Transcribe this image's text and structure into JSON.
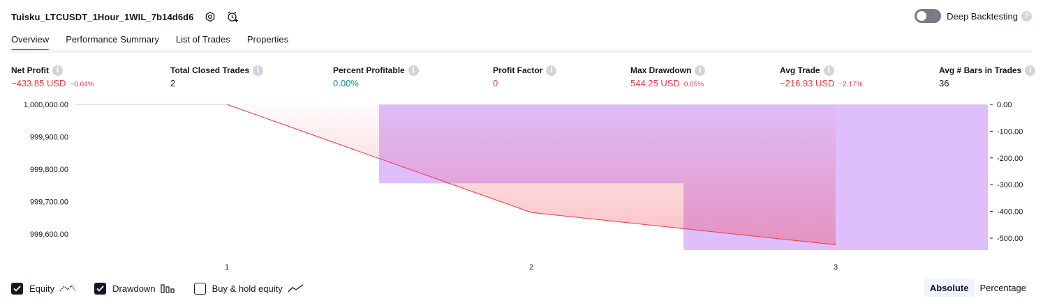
{
  "header": {
    "strategy_name": "Tuisku_LTCUSDT_1Hour_1WIL_7b14d6d6",
    "icons": [
      "settings-icon",
      "add-alert-icon"
    ]
  },
  "deep_backtesting": {
    "label": "Deep Backtesting",
    "enabled": false,
    "help": "?"
  },
  "tabs": [
    {
      "label": "Overview",
      "active": true
    },
    {
      "label": "Performance Summary",
      "active": false
    },
    {
      "label": "List of Trades",
      "active": false
    },
    {
      "label": "Properties",
      "active": false
    }
  ],
  "metrics": [
    {
      "label": "Net Profit",
      "value": "−433.85 USD",
      "pct": "−0.04%",
      "tone": "neg"
    },
    {
      "label": "Total Closed Trades",
      "value": "2",
      "pct": "",
      "tone": "neutral"
    },
    {
      "label": "Percent Profitable",
      "value": "0.00%",
      "pct": "",
      "tone": "pos"
    },
    {
      "label": "Profit Factor",
      "value": "0",
      "pct": "",
      "tone": "neg"
    },
    {
      "label": "Max Drawdown",
      "value": "544.25 USD",
      "pct": "0.05%",
      "tone": "neg"
    },
    {
      "label": "Avg Trade",
      "value": "−216.93 USD",
      "pct": "−2.17%",
      "tone": "neg"
    },
    {
      "label": "Avg # Bars in Trades",
      "value": "36",
      "pct": "",
      "tone": "neutral"
    }
  ],
  "info_glyph": "i",
  "chart_data": {
    "type": "line",
    "x_tick_labels": [
      "1",
      "2",
      "3"
    ],
    "left_axis": {
      "ticks": [
        "1,000,000.00",
        "999,900.00",
        "999,800.00",
        "999,700.00",
        "999,600.00"
      ],
      "ylim": [
        999550,
        1000000
      ]
    },
    "right_axis": {
      "ticks": [
        "0.00",
        "-100.00",
        "-200.00",
        "-300.00",
        "-400.00",
        "-500.00"
      ],
      "ylim": [
        -544.25,
        0
      ]
    },
    "equity": {
      "x": [
        0,
        1,
        2,
        3
      ],
      "values": [
        1000000,
        1000000,
        999666,
        999566.15
      ]
    },
    "drawdown_bars": [
      {
        "x_start": 1.5,
        "x_end": 2.5,
        "value": -295
      },
      {
        "x_start": 2.5,
        "x_end": 3.0,
        "value": -544.25
      },
      {
        "x_start": 3.0,
        "x_end": 3.5,
        "value": -544.25
      }
    ],
    "colors": {
      "equity_line": "#f23645",
      "drawdown": "#d9b3fb",
      "drawdown_fill": "#e1bee7"
    }
  },
  "legend": [
    {
      "label": "Equity",
      "checked": true,
      "icon": "equity-line-icon"
    },
    {
      "label": "Drawdown",
      "checked": true,
      "icon": "drawdown-bars-icon"
    },
    {
      "label": "Buy & hold equity",
      "checked": false,
      "icon": "buy-hold-line-icon"
    }
  ],
  "modes": [
    {
      "label": "Absolute",
      "active": true
    },
    {
      "label": "Percentage",
      "active": false
    }
  ]
}
